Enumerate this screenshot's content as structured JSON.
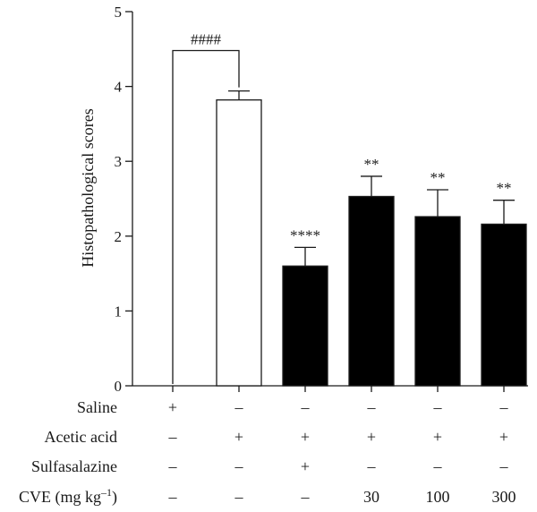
{
  "chart_data": {
    "type": "bar",
    "title": "",
    "ylabel": "Histopathological scores",
    "ylim": [
      0,
      5
    ],
    "yticks": [
      "0",
      "1",
      "2",
      "3",
      "4",
      "5"
    ],
    "groups": [
      {
        "value": 0.0,
        "error": 0.0,
        "fill": "#ffffff",
        "significance": ""
      },
      {
        "value": 3.82,
        "error": 0.12,
        "fill": "#ffffff",
        "significance": ""
      },
      {
        "value": 1.6,
        "error": 0.25,
        "fill": "#000000",
        "significance": "****"
      },
      {
        "value": 2.53,
        "error": 0.27,
        "fill": "#000000",
        "significance": "**"
      },
      {
        "value": 2.26,
        "error": 0.36,
        "fill": "#000000",
        "significance": "**"
      },
      {
        "value": 2.16,
        "error": 0.32,
        "fill": "#000000",
        "significance": "**"
      }
    ],
    "comparison": {
      "from_group": 0,
      "to_group": 1,
      "label": "####"
    },
    "treatment_table": [
      {
        "label": "Saline",
        "cells": [
          "+",
          "–",
          "–",
          "–",
          "–",
          "–"
        ]
      },
      {
        "label": "Acetic acid",
        "cells": [
          "–",
          "+",
          "+",
          "+",
          "+",
          "+"
        ]
      },
      {
        "label": "Sulfasalazine",
        "cells": [
          "–",
          "–",
          "+",
          "–",
          "–",
          "–"
        ]
      },
      {
        "label": "CVE (mg kg",
        "label_sup": "–1",
        "label_end": ")",
        "cells": [
          "–",
          "–",
          "–",
          "30",
          "100",
          "300"
        ]
      }
    ]
  }
}
